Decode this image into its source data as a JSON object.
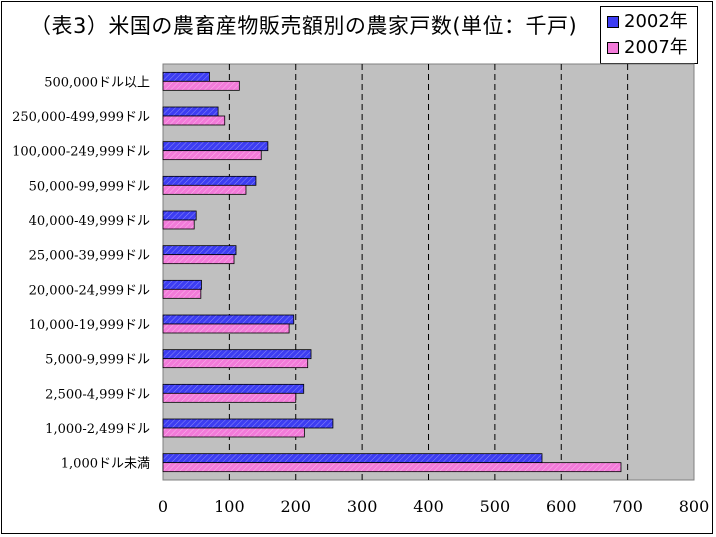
{
  "chart_data": {
    "type": "bar",
    "orientation": "horizontal",
    "title": "（表3）米国の農畜産物販売額別の農家戸数(単位：千戸)",
    "xlabel": "",
    "ylabel": "",
    "xlim": [
      0,
      800
    ],
    "ticks": [
      0,
      100,
      200,
      300,
      400,
      500,
      600,
      700,
      800
    ],
    "grid": "vertical-dashed",
    "legend_position": "top-right",
    "categories": [
      "500,000ドル以上",
      "250,000-499,999ドル",
      "100,000-249,999ドル",
      "50,000-99,999ドル",
      "40,000-49,999ドル",
      "25,000-39,999ドル",
      "20,000-24,999ドル",
      "10,000-19,999ドル",
      "5,000-9,999ドル",
      "2,500-4,999ドル",
      "1,000-2,499ドル",
      "1,000ドル未満"
    ],
    "series": [
      {
        "name": "2002年",
        "color": "#3d3df2",
        "values": [
          70,
          83,
          158,
          140,
          50,
          110,
          58,
          197,
          223,
          212,
          256,
          571
        ]
      },
      {
        "name": "2007年",
        "color": "#f27ad9",
        "values": [
          115,
          93,
          148,
          125,
          47,
          107,
          57,
          190,
          218,
          200,
          213,
          690
        ]
      }
    ]
  }
}
